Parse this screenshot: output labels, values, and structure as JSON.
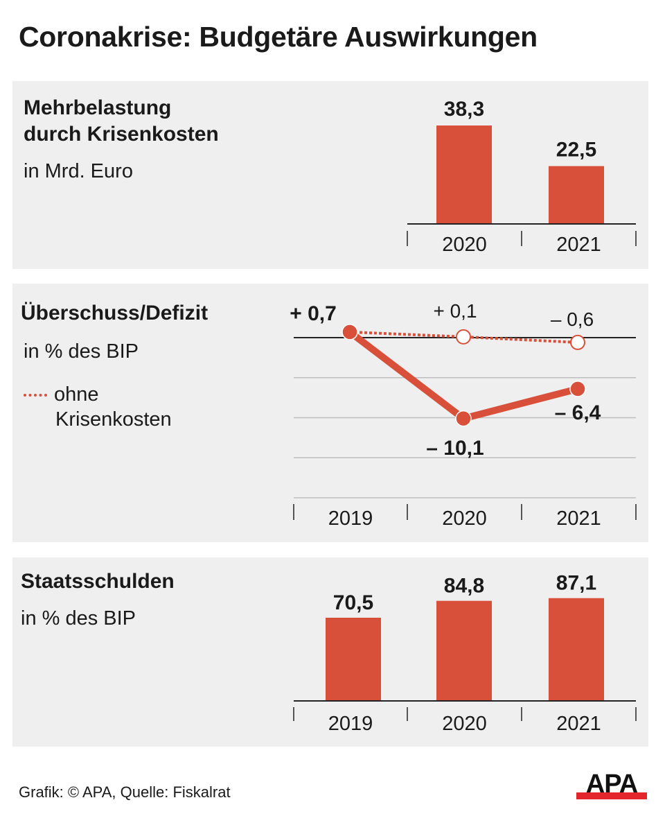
{
  "title": "Coronakrise: Budgetäre Auswirkungen",
  "colors": {
    "bar": "#d9503a",
    "panel": "#efefef",
    "logo_red": "#e3262b"
  },
  "chart_data": [
    {
      "type": "bar",
      "title": "Mehrbelastung durch Krisenkosten",
      "title_lines": [
        "Mehrbelastung",
        "durch Krisenkosten"
      ],
      "subtitle": "in Mrd. Euro",
      "categories": [
        "2020",
        "2021"
      ],
      "values": [
        38.3,
        22.5
      ],
      "labels": [
        "38,3",
        "22,5"
      ]
    },
    {
      "type": "line",
      "title": "Überschuss/Defizit",
      "subtitle": "in % des BIP",
      "legend": {
        "dotted": [
          "ohne",
          "Krisenkosten"
        ],
        "placement": "left"
      },
      "categories": [
        "2019",
        "2020",
        "2021"
      ],
      "ylim": [
        -20,
        0
      ],
      "grid": [
        0,
        -5,
        -10,
        -15,
        -20
      ],
      "series": [
        {
          "values": [
            0.7,
            -10.1,
            -6.4
          ],
          "labels": [
            "+ 0,7",
            "– 10,1",
            "– 6,4"
          ],
          "style": "solid"
        },
        {
          "name": "ohne Krisenkosten",
          "values": [
            0.7,
            0.1,
            -0.6
          ],
          "labels": [
            "",
            "+ 0,1",
            "– 0,6"
          ],
          "style": "dotted"
        }
      ]
    },
    {
      "type": "bar",
      "title": "Staatsschulden",
      "subtitle": "in % des BIP",
      "categories": [
        "2019",
        "2020",
        "2021"
      ],
      "values": [
        70.5,
        84.8,
        87.1
      ],
      "labels": [
        "70,5",
        "84,8",
        "87,1"
      ]
    }
  ],
  "footer": "Grafik: © APA, Quelle: Fiskalrat",
  "logo": "APA"
}
